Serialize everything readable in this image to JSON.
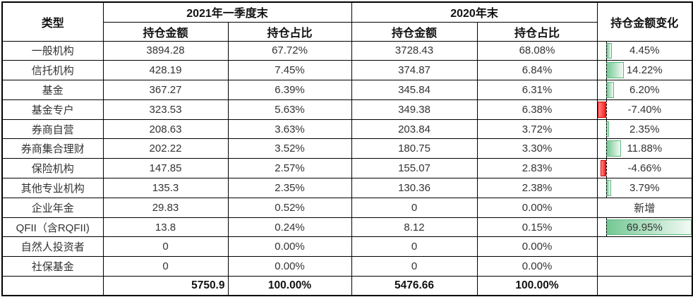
{
  "chart_data": {
    "type": "table",
    "title": "",
    "columns": [
      "类型",
      "2021年一季度末 持仓金额",
      "2021年一季度末 持仓占比",
      "2020年末 持仓金额",
      "2020年末 持仓占比",
      "持仓金额变化"
    ],
    "rows": [
      [
        "一般机构",
        3894.28,
        "67.72%",
        3728.43,
        "68.08%",
        "4.45%"
      ],
      [
        "信托机构",
        428.19,
        "7.45%",
        374.87,
        "6.84%",
        "14.22%"
      ],
      [
        "基金",
        367.27,
        "6.39%",
        345.84,
        "6.31%",
        "6.20%"
      ],
      [
        "基金专户",
        323.53,
        "5.63%",
        349.38,
        "6.38%",
        "-7.40%"
      ],
      [
        "券商自营",
        208.63,
        "3.63%",
        203.84,
        "3.72%",
        "2.35%"
      ],
      [
        "券商集合理财",
        202.22,
        "3.52%",
        180.75,
        "3.30%",
        "11.88%"
      ],
      [
        "保险机构",
        147.85,
        "2.57%",
        155.07,
        "2.83%",
        "-4.66%"
      ],
      [
        "其他专业机构",
        135.3,
        "2.35%",
        130.36,
        "2.38%",
        "3.79%"
      ],
      [
        "企业年金",
        29.83,
        "0.52%",
        0,
        "0.00%",
        "新增"
      ],
      [
        "QFII（含RQFII)",
        13.8,
        "0.24%",
        8.12,
        "0.15%",
        "69.95%"
      ],
      [
        "自然人投资者",
        0,
        "0.00%",
        0,
        "0.00%",
        ""
      ],
      [
        "社保基金",
        0,
        "0.00%",
        0,
        "0.00%",
        ""
      ]
    ],
    "total_row": [
      "",
      "5750.9",
      "100.00%",
      "5476.66",
      "100.00%",
      ""
    ],
    "data_bar_axis": {
      "min": -7.4,
      "max": 69.95,
      "style": "gradient-databar"
    }
  },
  "table": {
    "header": {
      "type": "类型",
      "period_2021": "2021年一季度末",
      "period_2020": "2020年末",
      "amount": "持仓金额",
      "share": "持仓占比",
      "change": "持仓金额变化"
    },
    "bar": {
      "max": 69.95,
      "min": -7.4,
      "positive_border": "#5cb87e",
      "positive_fill_start": "#74c893",
      "positive_fill_end": "#f2faf5",
      "negative_border": "#d40000",
      "negative_fill_start": "#ff8a8a",
      "negative_fill_end": "#ff1c1c",
      "axis_color": "#000000"
    },
    "rows": [
      {
        "type": "一般机构",
        "amount_2021": "3894.28",
        "share_2021": "67.72%",
        "amount_2020": "3728.43",
        "share_2020": "68.08%",
        "change_label": "4.45%",
        "change_value": 4.45
      },
      {
        "type": "信托机构",
        "amount_2021": "428.19",
        "share_2021": "7.45%",
        "amount_2020": "374.87",
        "share_2020": "6.84%",
        "change_label": "14.22%",
        "change_value": 14.22
      },
      {
        "type": "基金",
        "amount_2021": "367.27",
        "share_2021": "6.39%",
        "amount_2020": "345.84",
        "share_2020": "6.31%",
        "change_label": "6.20%",
        "change_value": 6.2
      },
      {
        "type": "基金专户",
        "amount_2021": "323.53",
        "share_2021": "5.63%",
        "amount_2020": "349.38",
        "share_2020": "6.38%",
        "change_label": "-7.40%",
        "change_value": -7.4
      },
      {
        "type": "券商自营",
        "amount_2021": "208.63",
        "share_2021": "3.63%",
        "amount_2020": "203.84",
        "share_2020": "3.72%",
        "change_label": "2.35%",
        "change_value": 2.35
      },
      {
        "type": "券商集合理财",
        "amount_2021": "202.22",
        "share_2021": "3.52%",
        "amount_2020": "180.75",
        "share_2020": "3.30%",
        "change_label": "11.88%",
        "change_value": 11.88
      },
      {
        "type": "保险机构",
        "amount_2021": "147.85",
        "share_2021": "2.57%",
        "amount_2020": "155.07",
        "share_2020": "2.83%",
        "change_label": "-4.66%",
        "change_value": -4.66
      },
      {
        "type": "其他专业机构",
        "amount_2021": "135.3",
        "share_2021": "2.35%",
        "amount_2020": "130.36",
        "share_2020": "2.38%",
        "change_label": "3.79%",
        "change_value": 3.79
      },
      {
        "type": "企业年金",
        "amount_2021": "29.83",
        "share_2021": "0.52%",
        "amount_2020": "0",
        "share_2020": "0.00%",
        "change_label": "新增",
        "change_value": null
      },
      {
        "type": "QFII（含RQFII)",
        "amount_2021": "13.8",
        "share_2021": "0.24%",
        "amount_2020": "8.12",
        "share_2020": "0.15%",
        "change_label": "69.95%",
        "change_value": 69.95
      },
      {
        "type": "自然人投资者",
        "amount_2021": "0",
        "share_2021": "0.00%",
        "amount_2020": "0",
        "share_2020": "0.00%",
        "change_label": "",
        "change_value": null
      },
      {
        "type": "社保基金",
        "amount_2021": "0",
        "share_2021": "0.00%",
        "amount_2020": "0",
        "share_2020": "0.00%",
        "change_label": "",
        "change_value": null
      }
    ],
    "total_row": {
      "type": "",
      "amount_2021": "5750.9",
      "share_2021": "100.00%",
      "amount_2020": "5476.66",
      "share_2020": "100.00%",
      "change_label": ""
    }
  }
}
